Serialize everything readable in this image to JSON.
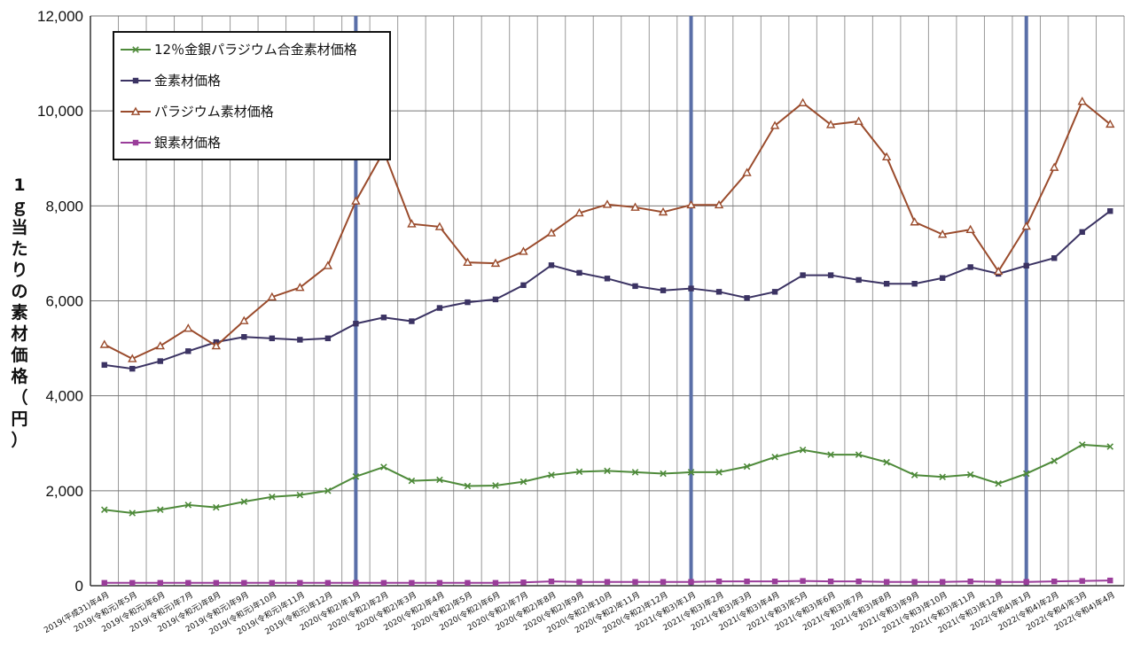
{
  "chart_data": {
    "type": "line",
    "ylabel": "1ｇ当たりの素材価格（円）",
    "ylim": [
      0,
      12000
    ],
    "yticks": [
      0,
      2000,
      4000,
      6000,
      8000,
      10000,
      12000
    ],
    "ytick_labels": [
      "0",
      "2,000",
      "4,000",
      "6,000",
      "8,000",
      "10,000",
      "12,000"
    ],
    "grid": true,
    "legend_position": "top-left",
    "reference_lines_at": [
      "2020(令和2)年1月",
      "2021(令和3)年1月",
      "2022(令和4)年1月"
    ],
    "categories": [
      "2019(平成31)年4月",
      "2019(令和元)年5月",
      "2019(令和元)年6月",
      "2019(令和元)年7月",
      "2019(令和元)年8月",
      "2019(令和元)年9月",
      "2019(令和元)年10月",
      "2019(令和元)年11月",
      "2019(令和元)年12月",
      "2020(令和2)年1月",
      "2020(令和2)年2月",
      "2020(令和2)年3月",
      "2020(令和2)年4月",
      "2020(令和2)年5月",
      "2020(令和2)年6月",
      "2020(令和2)年7月",
      "2020(令和2)年8月",
      "2020(令和2)年9月",
      "2020(令和2)年10月",
      "2020(令和2)年11月",
      "2020(令和2)年12月",
      "2021(令和3)年1月",
      "2021(令和3)年2月",
      "2021(令和3)年3月",
      "2021(令和3)年4月",
      "2021(令和3)年5月",
      "2021(令和3)年6月",
      "2021(令和3)年7月",
      "2021(令和3)年8月",
      "2021(令和3)年9月",
      "2021(令和3)年10月",
      "2021(令和3)年11月",
      "2021(令和3)年12月",
      "2022(令和4)年1月",
      "2022(令和4)年2月",
      "2022(令和4)年3月",
      "2022(令和4)年4月"
    ],
    "series": [
      {
        "name": "12％金銀パラジウム合金素材価格",
        "color": "#4e8a3a",
        "marker": "x",
        "values": [
          1600,
          1530,
          1600,
          1700,
          1650,
          1770,
          1870,
          1910,
          2000,
          2300,
          2500,
          2210,
          2230,
          2100,
          2110,
          2190,
          2330,
          2400,
          2420,
          2390,
          2360,
          2390,
          2390,
          2510,
          2710,
          2860,
          2760,
          2760,
          2600,
          2330,
          2290,
          2340,
          2150,
          2360,
          2630,
          2970,
          2930
        ]
      },
      {
        "name": "金素材価格",
        "color": "#3b3363",
        "marker": "square",
        "values": [
          4650,
          4570,
          4730,
          4940,
          5130,
          5240,
          5210,
          5180,
          5210,
          5520,
          5650,
          5570,
          5850,
          5970,
          6030,
          6330,
          6750,
          6590,
          6470,
          6310,
          6220,
          6260,
          6190,
          6060,
          6190,
          6540,
          6540,
          6440,
          6360,
          6360,
          6480,
          6710,
          6570,
          6740,
          6900,
          7450,
          7890
        ]
      },
      {
        "name": "パラジウム素材価格",
        "color": "#9a4b2c",
        "marker": "triangle",
        "values": [
          5080,
          4780,
          5050,
          5420,
          5050,
          5580,
          6080,
          6280,
          6740,
          8100,
          9150,
          7620,
          7560,
          6810,
          6790,
          7040,
          7430,
          7850,
          8030,
          7970,
          7870,
          8020,
          8020,
          8700,
          9690,
          10170,
          9710,
          9780,
          9030,
          7660,
          7400,
          7500,
          6620,
          7570,
          8810,
          10200,
          9720
        ]
      },
      {
        "name": "銀素材価格",
        "color": "#9a3d9a",
        "marker": "square",
        "values": [
          60,
          60,
          60,
          60,
          60,
          60,
          60,
          60,
          60,
          60,
          60,
          60,
          60,
          60,
          60,
          70,
          90,
          80,
          80,
          80,
          80,
          80,
          90,
          90,
          90,
          100,
          90,
          90,
          80,
          80,
          80,
          90,
          80,
          80,
          90,
          100,
          110
        ]
      }
    ]
  }
}
